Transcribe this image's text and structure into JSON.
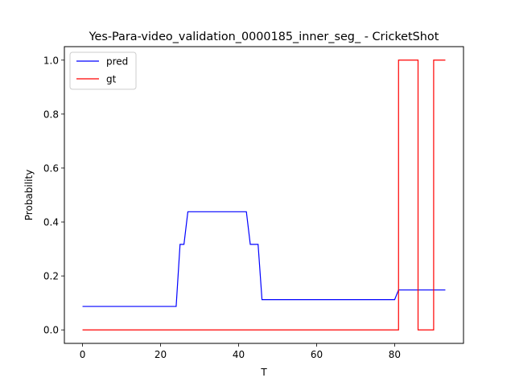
{
  "chart_data": {
    "type": "line",
    "title": "Yes-Para-video_validation_0000185_inner_seg_ - CricketShot",
    "xlabel": "T",
    "ylabel": "Probability",
    "xlim": [
      -4.65,
      97.65
    ],
    "ylim": [
      -0.05,
      1.05
    ],
    "xticks": [
      0,
      20,
      40,
      60,
      80
    ],
    "yticks": [
      0.0,
      0.2,
      0.4,
      0.6,
      0.8,
      1.0
    ],
    "xtick_labels": [
      "0",
      "20",
      "40",
      "60",
      "80"
    ],
    "ytick_labels": [
      "0.0",
      "0.2",
      "0.4",
      "0.6",
      "0.8",
      "1.0"
    ],
    "grid": false,
    "legend_position": "top-left",
    "series": [
      {
        "name": "pred",
        "color": "#0000ff",
        "x": [
          0,
          24,
          25,
          26,
          27,
          42,
          43,
          45,
          46,
          80,
          81,
          93
        ],
        "y": [
          0.087,
          0.087,
          0.317,
          0.317,
          0.438,
          0.438,
          0.317,
          0.317,
          0.112,
          0.112,
          0.148,
          0.148
        ]
      },
      {
        "name": "gt",
        "color": "#ff0000",
        "x": [
          0,
          81,
          81,
          86,
          86,
          90,
          90,
          93
        ],
        "y": [
          0,
          0,
          1,
          1,
          0,
          0,
          1,
          1
        ]
      }
    ]
  }
}
